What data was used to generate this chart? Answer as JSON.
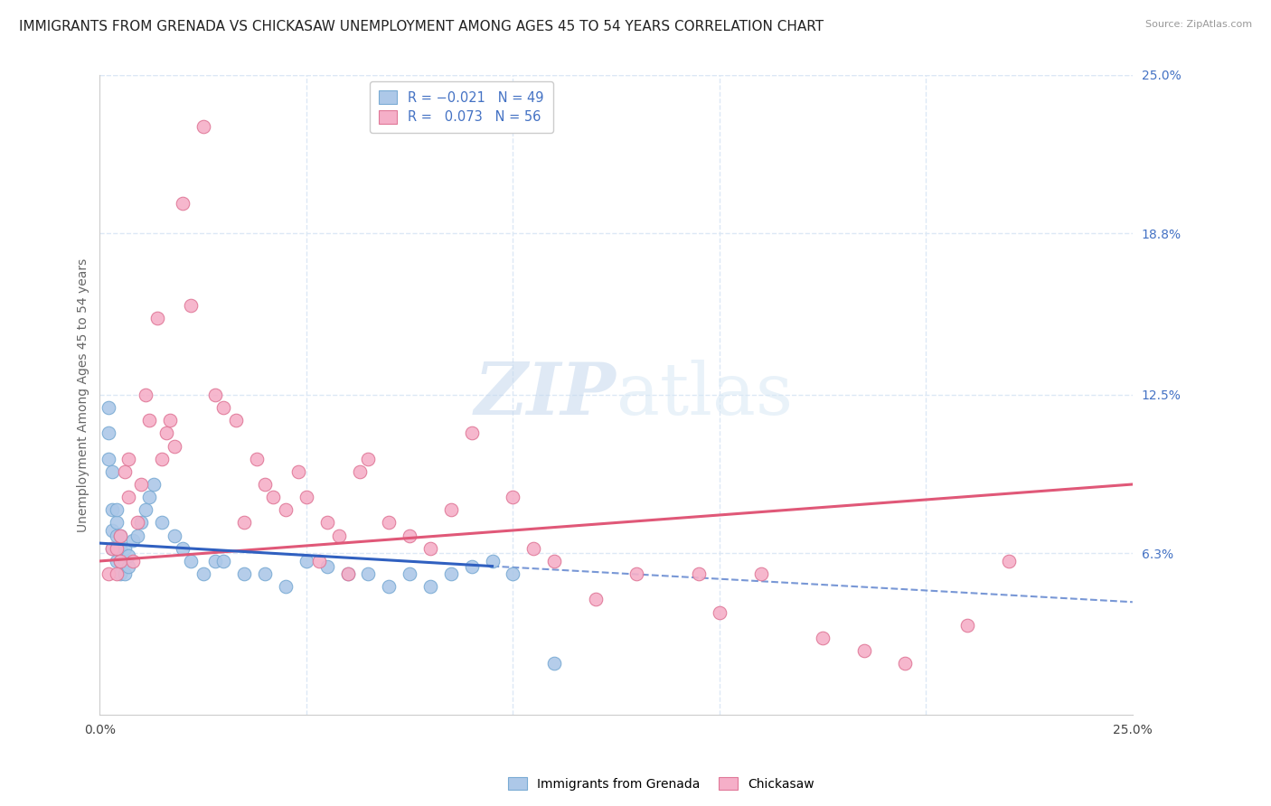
{
  "title": "IMMIGRANTS FROM GRENADA VS CHICKASAW UNEMPLOYMENT AMONG AGES 45 TO 54 YEARS CORRELATION CHART",
  "source": "Source: ZipAtlas.com",
  "ylabel": "Unemployment Among Ages 45 to 54 years",
  "xlim": [
    0.0,
    0.25
  ],
  "ylim": [
    0.0,
    0.25
  ],
  "ytick_right_vals": [
    0.063,
    0.125,
    0.188,
    0.25
  ],
  "ytick_right_labels": [
    "6.3%",
    "12.5%",
    "18.8%",
    "25.0%"
  ],
  "series1_label": "Immigrants from Grenada",
  "series1_color": "#adc8e8",
  "series1_edge": "#7aabd4",
  "series1_R": "-0.021",
  "series1_N": "49",
  "series2_label": "Chickasaw",
  "series2_color": "#f5afc8",
  "series2_edge": "#e07898",
  "series2_R": "0.073",
  "series2_N": "56",
  "watermark_zip": "ZIP",
  "watermark_atlas": "atlas",
  "background_color": "#ffffff",
  "grid_color": "#dce8f5",
  "title_fontsize": 11,
  "axis_label_fontsize": 10,
  "tick_fontsize": 10,
  "trend1_color": "#3060c0",
  "trend2_color": "#e05878",
  "trend1_solid_x0": 0.0,
  "trend1_solid_x1": 0.095,
  "trend1_solid_y0": 0.067,
  "trend1_solid_y1": 0.058,
  "trend1_dash_x0": 0.095,
  "trend1_dash_x1": 0.25,
  "trend1_dash_y0": 0.058,
  "trend1_dash_y1": 0.044,
  "trend2_x0": 0.0,
  "trend2_x1": 0.25,
  "trend2_y0": 0.06,
  "trend2_y1": 0.09,
  "s1_x": [
    0.002,
    0.002,
    0.002,
    0.003,
    0.003,
    0.003,
    0.003,
    0.004,
    0.004,
    0.004,
    0.004,
    0.004,
    0.005,
    0.005,
    0.005,
    0.005,
    0.006,
    0.006,
    0.006,
    0.007,
    0.007,
    0.008,
    0.009,
    0.01,
    0.011,
    0.012,
    0.013,
    0.015,
    0.018,
    0.02,
    0.022,
    0.025,
    0.028,
    0.03,
    0.035,
    0.04,
    0.045,
    0.05,
    0.055,
    0.06,
    0.065,
    0.07,
    0.075,
    0.08,
    0.085,
    0.09,
    0.095,
    0.1,
    0.11
  ],
  "s1_y": [
    0.1,
    0.11,
    0.12,
    0.065,
    0.072,
    0.08,
    0.095,
    0.06,
    0.065,
    0.07,
    0.075,
    0.08,
    0.055,
    0.06,
    0.065,
    0.07,
    0.055,
    0.06,
    0.065,
    0.058,
    0.062,
    0.068,
    0.07,
    0.075,
    0.08,
    0.085,
    0.09,
    0.075,
    0.07,
    0.065,
    0.06,
    0.055,
    0.06,
    0.06,
    0.055,
    0.055,
    0.05,
    0.06,
    0.058,
    0.055,
    0.055,
    0.05,
    0.055,
    0.05,
    0.055,
    0.058,
    0.06,
    0.055,
    0.02
  ],
  "s2_x": [
    0.002,
    0.003,
    0.004,
    0.004,
    0.005,
    0.005,
    0.006,
    0.007,
    0.007,
    0.008,
    0.009,
    0.01,
    0.011,
    0.012,
    0.014,
    0.015,
    0.016,
    0.017,
    0.018,
    0.02,
    0.022,
    0.025,
    0.028,
    0.03,
    0.033,
    0.035,
    0.038,
    0.04,
    0.042,
    0.045,
    0.048,
    0.05,
    0.053,
    0.055,
    0.058,
    0.06,
    0.063,
    0.065,
    0.07,
    0.075,
    0.08,
    0.085,
    0.09,
    0.1,
    0.105,
    0.11,
    0.12,
    0.13,
    0.145,
    0.15,
    0.16,
    0.175,
    0.185,
    0.195,
    0.21,
    0.22
  ],
  "s2_y": [
    0.055,
    0.065,
    0.055,
    0.065,
    0.06,
    0.07,
    0.095,
    0.1,
    0.085,
    0.06,
    0.075,
    0.09,
    0.125,
    0.115,
    0.155,
    0.1,
    0.11,
    0.115,
    0.105,
    0.2,
    0.16,
    0.23,
    0.125,
    0.12,
    0.115,
    0.075,
    0.1,
    0.09,
    0.085,
    0.08,
    0.095,
    0.085,
    0.06,
    0.075,
    0.07,
    0.055,
    0.095,
    0.1,
    0.075,
    0.07,
    0.065,
    0.08,
    0.11,
    0.085,
    0.065,
    0.06,
    0.045,
    0.055,
    0.055,
    0.04,
    0.055,
    0.03,
    0.025,
    0.02,
    0.035,
    0.06
  ]
}
